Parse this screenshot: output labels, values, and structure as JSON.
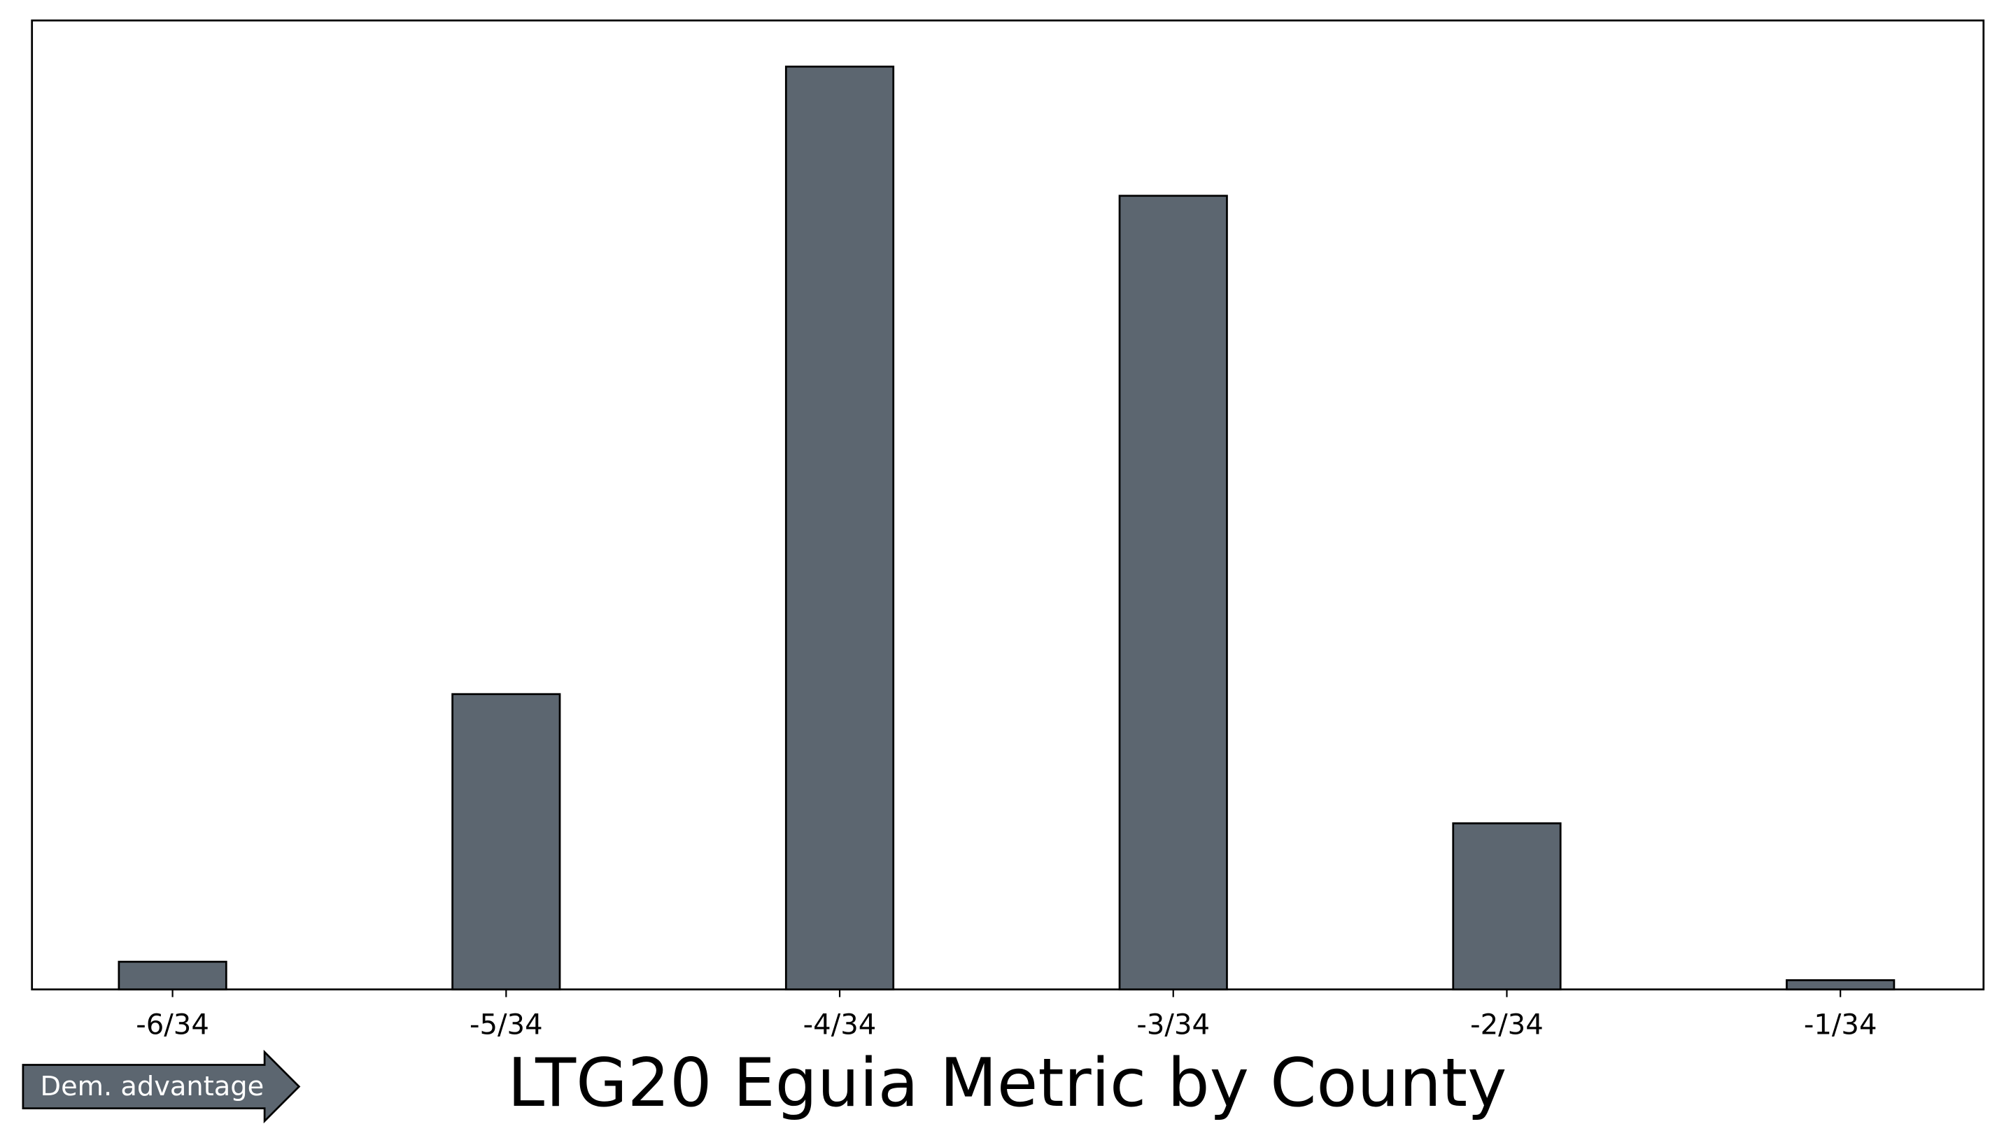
{
  "chart_data": {
    "type": "bar",
    "title": "LTG20 Eguia Metric by County",
    "annotation": "Dem. advantage",
    "categories": [
      "-6/34",
      null,
      "-5/34",
      null,
      "-4/34",
      null,
      "-3/34",
      null,
      "-2/34",
      null,
      "-1/34"
    ],
    "values": [
      0.03,
      0,
      0.32,
      0,
      1.0,
      0,
      0.86,
      0,
      0.18,
      0,
      0.01
    ],
    "color": "#5c6670",
    "ylim": [
      0,
      1.05
    ],
    "grid": false
  }
}
